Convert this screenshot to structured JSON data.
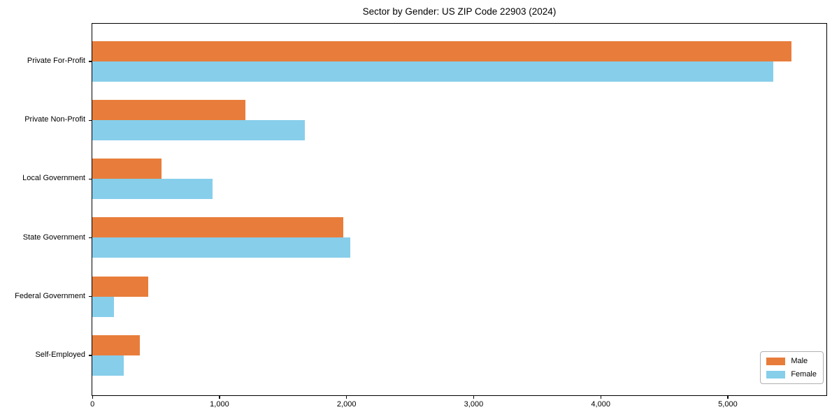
{
  "chart_data": {
    "type": "bar",
    "orientation": "horizontal",
    "title": "Sector by Gender: US ZIP Code 22903 (2024)",
    "categories": [
      "Private For-Profit",
      "Private Non-Profit",
      "Local Government",
      "State Government",
      "Federal Government",
      "Self-Employed"
    ],
    "series": [
      {
        "name": "Male",
        "color": "#e87d3b",
        "values": [
          5500,
          1205,
          545,
          1975,
          440,
          375
        ]
      },
      {
        "name": "Female",
        "color": "#87ceeb",
        "values": [
          5360,
          1670,
          945,
          2030,
          170,
          250
        ]
      }
    ],
    "xlabel": "",
    "ylabel": "",
    "xlim": [
      0,
      5775
    ],
    "xticks": [
      0,
      1000,
      2000,
      3000,
      4000,
      5000
    ],
    "xtick_labels": [
      "0",
      "1,000",
      "2,000",
      "3,000",
      "4,000",
      "5,000"
    ],
    "grid": false,
    "legend": {
      "position": "lower right",
      "entries": [
        "Male",
        "Female"
      ]
    }
  }
}
